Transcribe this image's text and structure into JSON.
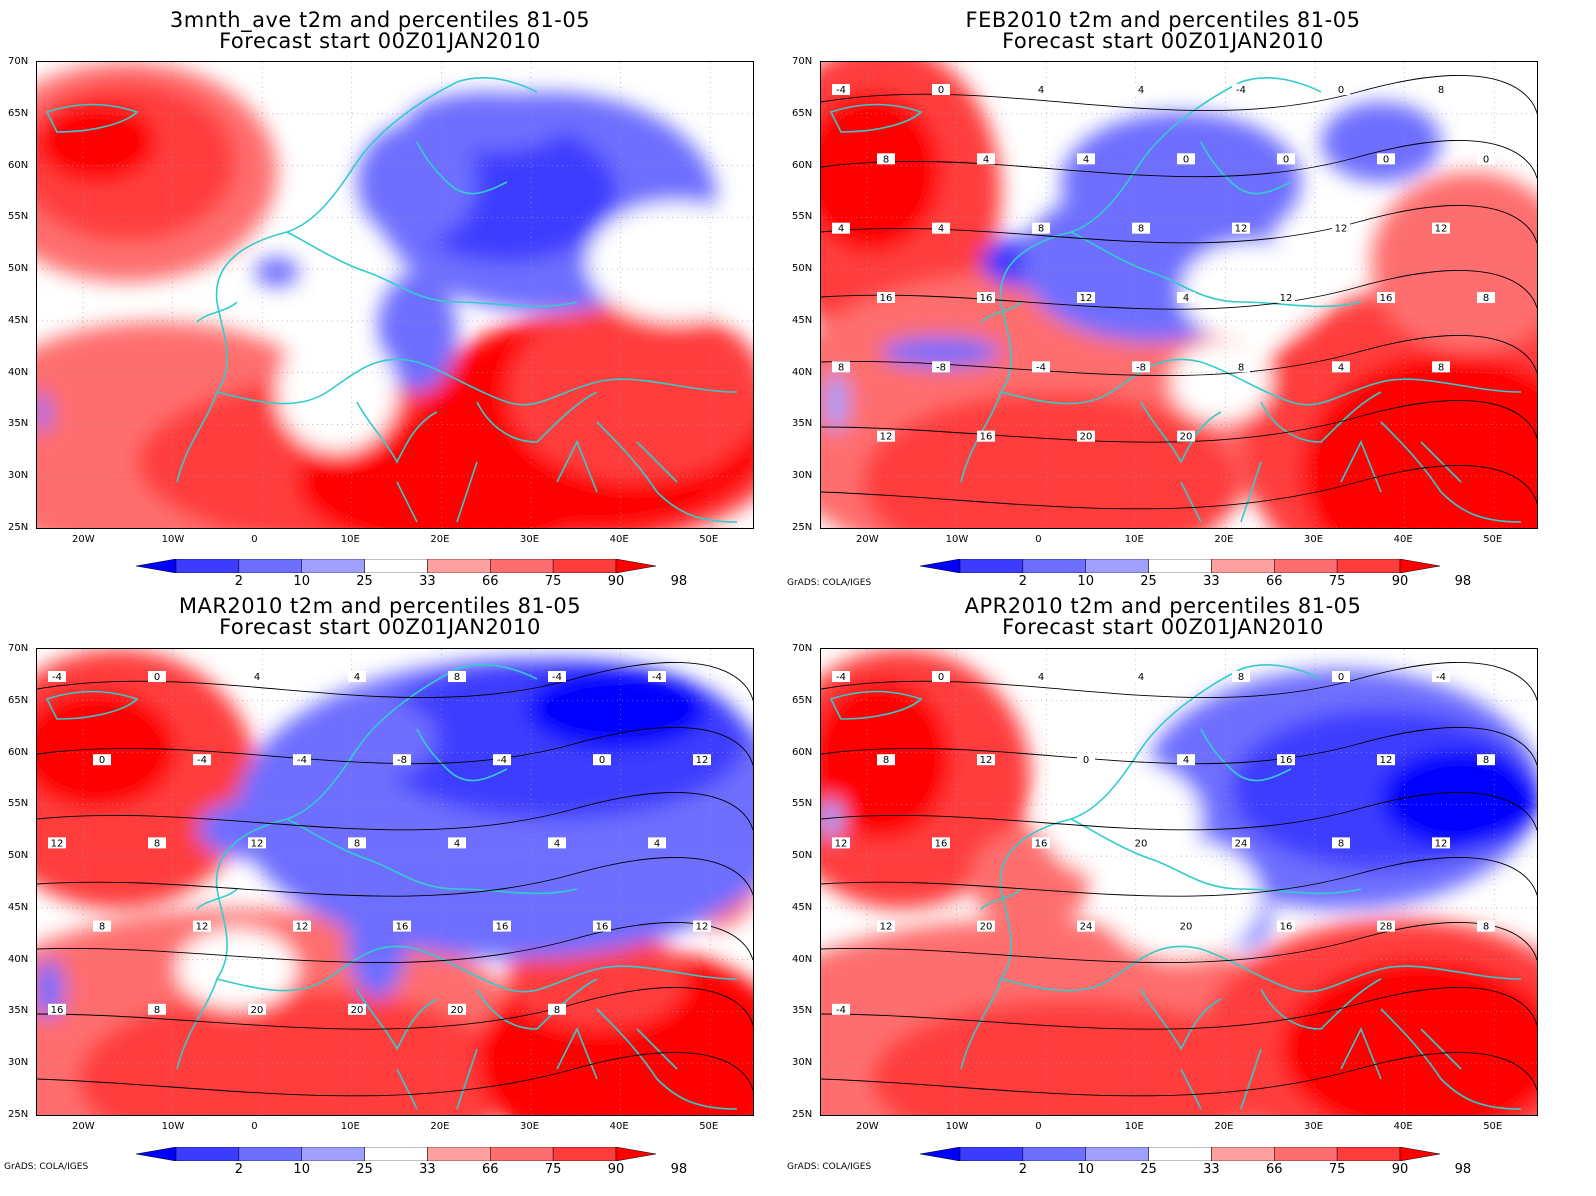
{
  "panels": [
    {
      "title1": "3mnth_ave t2m and percentiles 81-05",
      "title2": "Forecast start 00Z01JAN2010",
      "credit": ""
    },
    {
      "title1": "FEB2010 t2m and percentiles 81-05",
      "title2": "Forecast start 00Z01JAN2010",
      "credit": "GrADS: COLA/IGES"
    },
    {
      "title1": "MAR2010 t2m and percentiles 81-05",
      "title2": "Forecast start 00Z01JAN2010",
      "credit": "GrADS: COLA/IGES"
    },
    {
      "title1": "APR2010 t2m and percentiles 81-05",
      "title2": "Forecast start 00Z01JAN2010",
      "credit": "GrADS: COLA/IGES"
    }
  ],
  "lat_ticks": [
    "70N",
    "65N",
    "60N",
    "55N",
    "50N",
    "45N",
    "40N",
    "35N",
    "30N",
    "25N"
  ],
  "lon_ticks": [
    "20W",
    "10W",
    "0",
    "10E",
    "20E",
    "30E",
    "40E",
    "50E"
  ],
  "colorbar": {
    "labels": [
      "2",
      "10",
      "25",
      "33",
      "66",
      "75",
      "90",
      "98"
    ],
    "colors": [
      "#0000ff",
      "#3c3cff",
      "#6e6eff",
      "#a0a0ff",
      "#ffffff",
      "#ffa0a0",
      "#ff6e6e",
      "#ff3c3c",
      "#ff0000"
    ]
  },
  "colors": {
    "coast": "#33cccc",
    "contour": "#000000"
  },
  "contour_labels": [
    [],
    [
      "-4",
      "0",
      "4",
      "4",
      "-4",
      "0",
      "8",
      "8",
      "4",
      "4",
      "0",
      "0",
      "0",
      "0",
      "4",
      "4",
      "8",
      "8",
      "12",
      "12",
      "12",
      "16",
      "16",
      "12",
      "4",
      "12",
      "16",
      "8",
      "8",
      "-8",
      "-4",
      "-8",
      "8",
      "4",
      "8",
      "12",
      "16",
      "20",
      "20"
    ],
    [
      "-4",
      "0",
      "4",
      "4",
      "8",
      "-4",
      "-4",
      "0",
      "-4",
      "-4",
      "-8",
      "-4",
      "0",
      "12",
      "12",
      "8",
      "12",
      "8",
      "4",
      "4",
      "4",
      "8",
      "12",
      "12",
      "16",
      "16",
      "16",
      "12",
      "16",
      "8",
      "20",
      "20",
      "20",
      "8"
    ],
    [
      "-4",
      "0",
      "4",
      "4",
      "8",
      "0",
      "-4",
      "8",
      "12",
      "0",
      "4",
      "16",
      "12",
      "8",
      "12",
      "16",
      "16",
      "20",
      "24",
      "8",
      "12",
      "12",
      "20",
      "24",
      "20",
      "16",
      "28",
      "8",
      "-4"
    ]
  ]
}
